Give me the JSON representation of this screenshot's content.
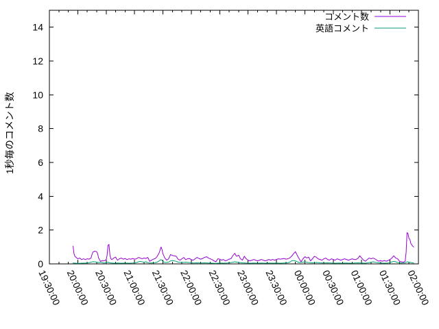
{
  "chart_data": {
    "type": "line",
    "title": "",
    "xlabel": "",
    "ylabel": "1秒毎のコメント数",
    "x_unit": "minutes since 19:30:00",
    "x_range": [
      0,
      390
    ],
    "y_range": [
      0,
      15
    ],
    "y_ticks": [
      0,
      2,
      4,
      6,
      8,
      10,
      12,
      14
    ],
    "x_tick_minutes": [
      0,
      30,
      60,
      90,
      120,
      150,
      180,
      210,
      240,
      270,
      300,
      330,
      360,
      390
    ],
    "x_tick_labels": [
      "19:30:00",
      "20:00:00",
      "20:30:00",
      "21:00:00",
      "21:30:00",
      "22:00:00",
      "22:30:00",
      "23:00:00",
      "23:30:00",
      "00:00:00",
      "00:30:00",
      "01:00:00",
      "01:30:00",
      "02:00:00"
    ],
    "x_minor_tick_interval": 10,
    "grid": false,
    "legend_position": "top-right-inside",
    "series": [
      {
        "name": "コメント数",
        "color": "#9400d3",
        "points": [
          [
            25,
            1.05
          ],
          [
            26,
            0.6
          ],
          [
            27,
            0.45
          ],
          [
            28,
            0.4
          ],
          [
            30,
            0.3
          ],
          [
            32,
            0.35
          ],
          [
            34,
            0.25
          ],
          [
            36,
            0.3
          ],
          [
            38,
            0.25
          ],
          [
            40,
            0.3
          ],
          [
            42,
            0.28
          ],
          [
            44,
            0.35
          ],
          [
            45,
            0.55
          ],
          [
            46,
            0.7
          ],
          [
            48,
            0.75
          ],
          [
            50,
            0.72
          ],
          [
            51,
            0.6
          ],
          [
            52,
            0.35
          ],
          [
            54,
            0.15
          ],
          [
            56,
            0.2
          ],
          [
            58,
            0.18
          ],
          [
            60,
            0.25
          ],
          [
            61,
            0.5
          ],
          [
            62,
            1.1
          ],
          [
            63,
            1.15
          ],
          [
            64,
            0.5
          ],
          [
            65,
            0.3
          ],
          [
            66,
            0.25
          ],
          [
            68,
            0.35
          ],
          [
            70,
            0.4
          ],
          [
            71,
            0.3
          ],
          [
            72,
            0.22
          ],
          [
            74,
            0.3
          ],
          [
            76,
            0.35
          ],
          [
            78,
            0.28
          ],
          [
            80,
            0.32
          ],
          [
            82,
            0.25
          ],
          [
            84,
            0.3
          ],
          [
            86,
            0.28
          ],
          [
            88,
            0.32
          ],
          [
            90,
            0.28
          ],
          [
            92,
            0.3
          ],
          [
            94,
            0.38
          ],
          [
            96,
            0.35
          ],
          [
            98,
            0.3
          ],
          [
            100,
            0.35
          ],
          [
            102,
            0.32
          ],
          [
            104,
            0.38
          ],
          [
            106,
            0.15
          ],
          [
            108,
            0.22
          ],
          [
            110,
            0.28
          ],
          [
            112,
            0.32
          ],
          [
            114,
            0.45
          ],
          [
            116,
            0.65
          ],
          [
            118,
            1.0
          ],
          [
            119,
            0.85
          ],
          [
            120,
            0.6
          ],
          [
            122,
            0.35
          ],
          [
            124,
            0.22
          ],
          [
            126,
            0.3
          ],
          [
            128,
            0.55
          ],
          [
            130,
            0.5
          ],
          [
            132,
            0.48
          ],
          [
            134,
            0.45
          ],
          [
            136,
            0.28
          ],
          [
            138,
            0.22
          ],
          [
            140,
            0.3
          ],
          [
            142,
            0.38
          ],
          [
            144,
            0.25
          ],
          [
            146,
            0.3
          ],
          [
            148,
            0.32
          ],
          [
            150,
            0.25
          ],
          [
            152,
            0.22
          ],
          [
            154,
            0.3
          ],
          [
            156,
            0.38
          ],
          [
            158,
            0.32
          ],
          [
            160,
            0.28
          ],
          [
            162,
            0.32
          ],
          [
            164,
            0.38
          ],
          [
            166,
            0.42
          ],
          [
            168,
            0.35
          ],
          [
            170,
            0.3
          ],
          [
            172,
            0.25
          ],
          [
            174,
            0.18
          ],
          [
            176,
            0.12
          ],
          [
            178,
            0.3
          ],
          [
            180,
            0.28
          ],
          [
            182,
            0.22
          ],
          [
            184,
            0.26
          ],
          [
            186,
            0.18
          ],
          [
            188,
            0.22
          ],
          [
            190,
            0.28
          ],
          [
            192,
            0.32
          ],
          [
            194,
            0.5
          ],
          [
            196,
            0.62
          ],
          [
            197,
            0.5
          ],
          [
            198,
            0.45
          ],
          [
            200,
            0.52
          ],
          [
            202,
            0.3
          ],
          [
            204,
            0.22
          ],
          [
            206,
            0.45
          ],
          [
            208,
            0.3
          ],
          [
            210,
            0.22
          ],
          [
            212,
            0.18
          ],
          [
            214,
            0.22
          ],
          [
            216,
            0.26
          ],
          [
            218,
            0.22
          ],
          [
            220,
            0.18
          ],
          [
            222,
            0.22
          ],
          [
            224,
            0.26
          ],
          [
            226,
            0.22
          ],
          [
            228,
            0.18
          ],
          [
            230,
            0.22
          ],
          [
            232,
            0.26
          ],
          [
            234,
            0.22
          ],
          [
            236,
            0.26
          ],
          [
            238,
            0.22
          ],
          [
            240,
            0.26
          ],
          [
            242,
            0.3
          ],
          [
            244,
            0.28
          ],
          [
            246,
            0.3
          ],
          [
            248,
            0.32
          ],
          [
            250,
            0.28
          ],
          [
            252,
            0.3
          ],
          [
            254,
            0.35
          ],
          [
            256,
            0.45
          ],
          [
            258,
            0.6
          ],
          [
            260,
            0.72
          ],
          [
            262,
            0.5
          ],
          [
            264,
            0.3
          ],
          [
            266,
            0.12
          ],
          [
            268,
            0.3
          ],
          [
            270,
            0.42
          ],
          [
            272,
            0.35
          ],
          [
            274,
            0.4
          ],
          [
            276,
            0.18
          ],
          [
            278,
            0.3
          ],
          [
            280,
            0.45
          ],
          [
            282,
            0.4
          ],
          [
            284,
            0.3
          ],
          [
            286,
            0.26
          ],
          [
            288,
            0.22
          ],
          [
            290,
            0.3
          ],
          [
            292,
            0.35
          ],
          [
            294,
            0.26
          ],
          [
            296,
            0.22
          ],
          [
            298,
            0.3
          ],
          [
            300,
            0.26
          ],
          [
            302,
            0.22
          ],
          [
            304,
            0.3
          ],
          [
            306,
            0.26
          ],
          [
            308,
            0.22
          ],
          [
            310,
            0.26
          ],
          [
            312,
            0.3
          ],
          [
            314,
            0.26
          ],
          [
            316,
            0.22
          ],
          [
            318,
            0.26
          ],
          [
            320,
            0.3
          ],
          [
            322,
            0.26
          ],
          [
            324,
            0.26
          ],
          [
            326,
            0.32
          ],
          [
            328,
            0.48
          ],
          [
            330,
            0.35
          ],
          [
            332,
            0.22
          ],
          [
            334,
            0.16
          ],
          [
            336,
            0.26
          ],
          [
            338,
            0.35
          ],
          [
            340,
            0.3
          ],
          [
            342,
            0.35
          ],
          [
            344,
            0.3
          ],
          [
            346,
            0.22
          ],
          [
            348,
            0.16
          ],
          [
            350,
            0.2
          ],
          [
            352,
            0.16
          ],
          [
            354,
            0.2
          ],
          [
            356,
            0.16
          ],
          [
            358,
            0.2
          ],
          [
            360,
            0.26
          ],
          [
            362,
            0.35
          ],
          [
            364,
            0.48
          ],
          [
            366,
            0.35
          ],
          [
            368,
            0.3
          ],
          [
            370,
            0.16
          ],
          [
            372,
            0.12
          ],
          [
            374,
            0.1
          ],
          [
            376,
            0.15
          ],
          [
            377,
            0.7
          ],
          [
            378,
            1.85
          ],
          [
            379,
            1.8
          ],
          [
            380,
            1.5
          ],
          [
            381,
            1.45
          ],
          [
            382,
            1.2
          ],
          [
            384,
            1.05
          ],
          [
            385,
            1.0
          ]
        ]
      },
      {
        "name": "英語コメント",
        "color": "#009e73",
        "points": [
          [
            25,
            0.05
          ],
          [
            30,
            0.03
          ],
          [
            35,
            0.04
          ],
          [
            40,
            0.05
          ],
          [
            44,
            0.1
          ],
          [
            46,
            0.13
          ],
          [
            48,
            0.12
          ],
          [
            50,
            0.1
          ],
          [
            52,
            0.08
          ],
          [
            54,
            0.1
          ],
          [
            56,
            0.08
          ],
          [
            58,
            0.05
          ],
          [
            62,
            0.1
          ],
          [
            64,
            0.06
          ],
          [
            68,
            0.04
          ],
          [
            72,
            0.05
          ],
          [
            76,
            0.04
          ],
          [
            80,
            0.05
          ],
          [
            84,
            0.04
          ],
          [
            88,
            0.05
          ],
          [
            92,
            0.08
          ],
          [
            94,
            0.12
          ],
          [
            96,
            0.15
          ],
          [
            98,
            0.12
          ],
          [
            100,
            0.1
          ],
          [
            102,
            0.12
          ],
          [
            104,
            0.08
          ],
          [
            106,
            0.05
          ],
          [
            110,
            0.06
          ],
          [
            114,
            0.1
          ],
          [
            116,
            0.18
          ],
          [
            118,
            0.25
          ],
          [
            120,
            0.15
          ],
          [
            122,
            0.08
          ],
          [
            126,
            0.1
          ],
          [
            128,
            0.18
          ],
          [
            130,
            0.2
          ],
          [
            132,
            0.18
          ],
          [
            134,
            0.15
          ],
          [
            136,
            0.1
          ],
          [
            140,
            0.08
          ],
          [
            144,
            0.1
          ],
          [
            148,
            0.08
          ],
          [
            152,
            0.05
          ],
          [
            156,
            0.06
          ],
          [
            160,
            0.05
          ],
          [
            164,
            0.06
          ],
          [
            168,
            0.05
          ],
          [
            172,
            0.04
          ],
          [
            176,
            0.03
          ],
          [
            180,
            0.05
          ],
          [
            184,
            0.04
          ],
          [
            188,
            0.05
          ],
          [
            192,
            0.08
          ],
          [
            194,
            0.1
          ],
          [
            196,
            0.12
          ],
          [
            198,
            0.1
          ],
          [
            200,
            0.08
          ],
          [
            204,
            0.06
          ],
          [
            208,
            0.05
          ],
          [
            212,
            0.04
          ],
          [
            216,
            0.05
          ],
          [
            220,
            0.04
          ],
          [
            224,
            0.05
          ],
          [
            228,
            0.04
          ],
          [
            232,
            0.05
          ],
          [
            236,
            0.04
          ],
          [
            240,
            0.05
          ],
          [
            244,
            0.04
          ],
          [
            248,
            0.05
          ],
          [
            252,
            0.06
          ],
          [
            254,
            0.1
          ],
          [
            256,
            0.18
          ],
          [
            258,
            0.2
          ],
          [
            260,
            0.18
          ],
          [
            262,
            0.12
          ],
          [
            264,
            0.08
          ],
          [
            268,
            0.1
          ],
          [
            270,
            0.12
          ],
          [
            272,
            0.1
          ],
          [
            274,
            0.08
          ],
          [
            278,
            0.06
          ],
          [
            282,
            0.08
          ],
          [
            286,
            0.06
          ],
          [
            290,
            0.05
          ],
          [
            294,
            0.06
          ],
          [
            298,
            0.05
          ],
          [
            302,
            0.04
          ],
          [
            306,
            0.05
          ],
          [
            310,
            0.04
          ],
          [
            314,
            0.05
          ],
          [
            318,
            0.04
          ],
          [
            322,
            0.05
          ],
          [
            326,
            0.06
          ],
          [
            330,
            0.05
          ],
          [
            334,
            0.04
          ],
          [
            338,
            0.08
          ],
          [
            340,
            0.1
          ],
          [
            342,
            0.12
          ],
          [
            344,
            0.1
          ],
          [
            346,
            0.08
          ],
          [
            350,
            0.05
          ],
          [
            354,
            0.04
          ],
          [
            358,
            0.05
          ],
          [
            360,
            0.08
          ],
          [
            362,
            0.12
          ],
          [
            364,
            0.15
          ],
          [
            366,
            0.12
          ],
          [
            368,
            0.08
          ],
          [
            372,
            0.05
          ],
          [
            376,
            0.06
          ],
          [
            378,
            0.12
          ],
          [
            380,
            0.1
          ],
          [
            382,
            0.08
          ],
          [
            384,
            0.06
          ],
          [
            385,
            0.05
          ]
        ]
      }
    ]
  }
}
